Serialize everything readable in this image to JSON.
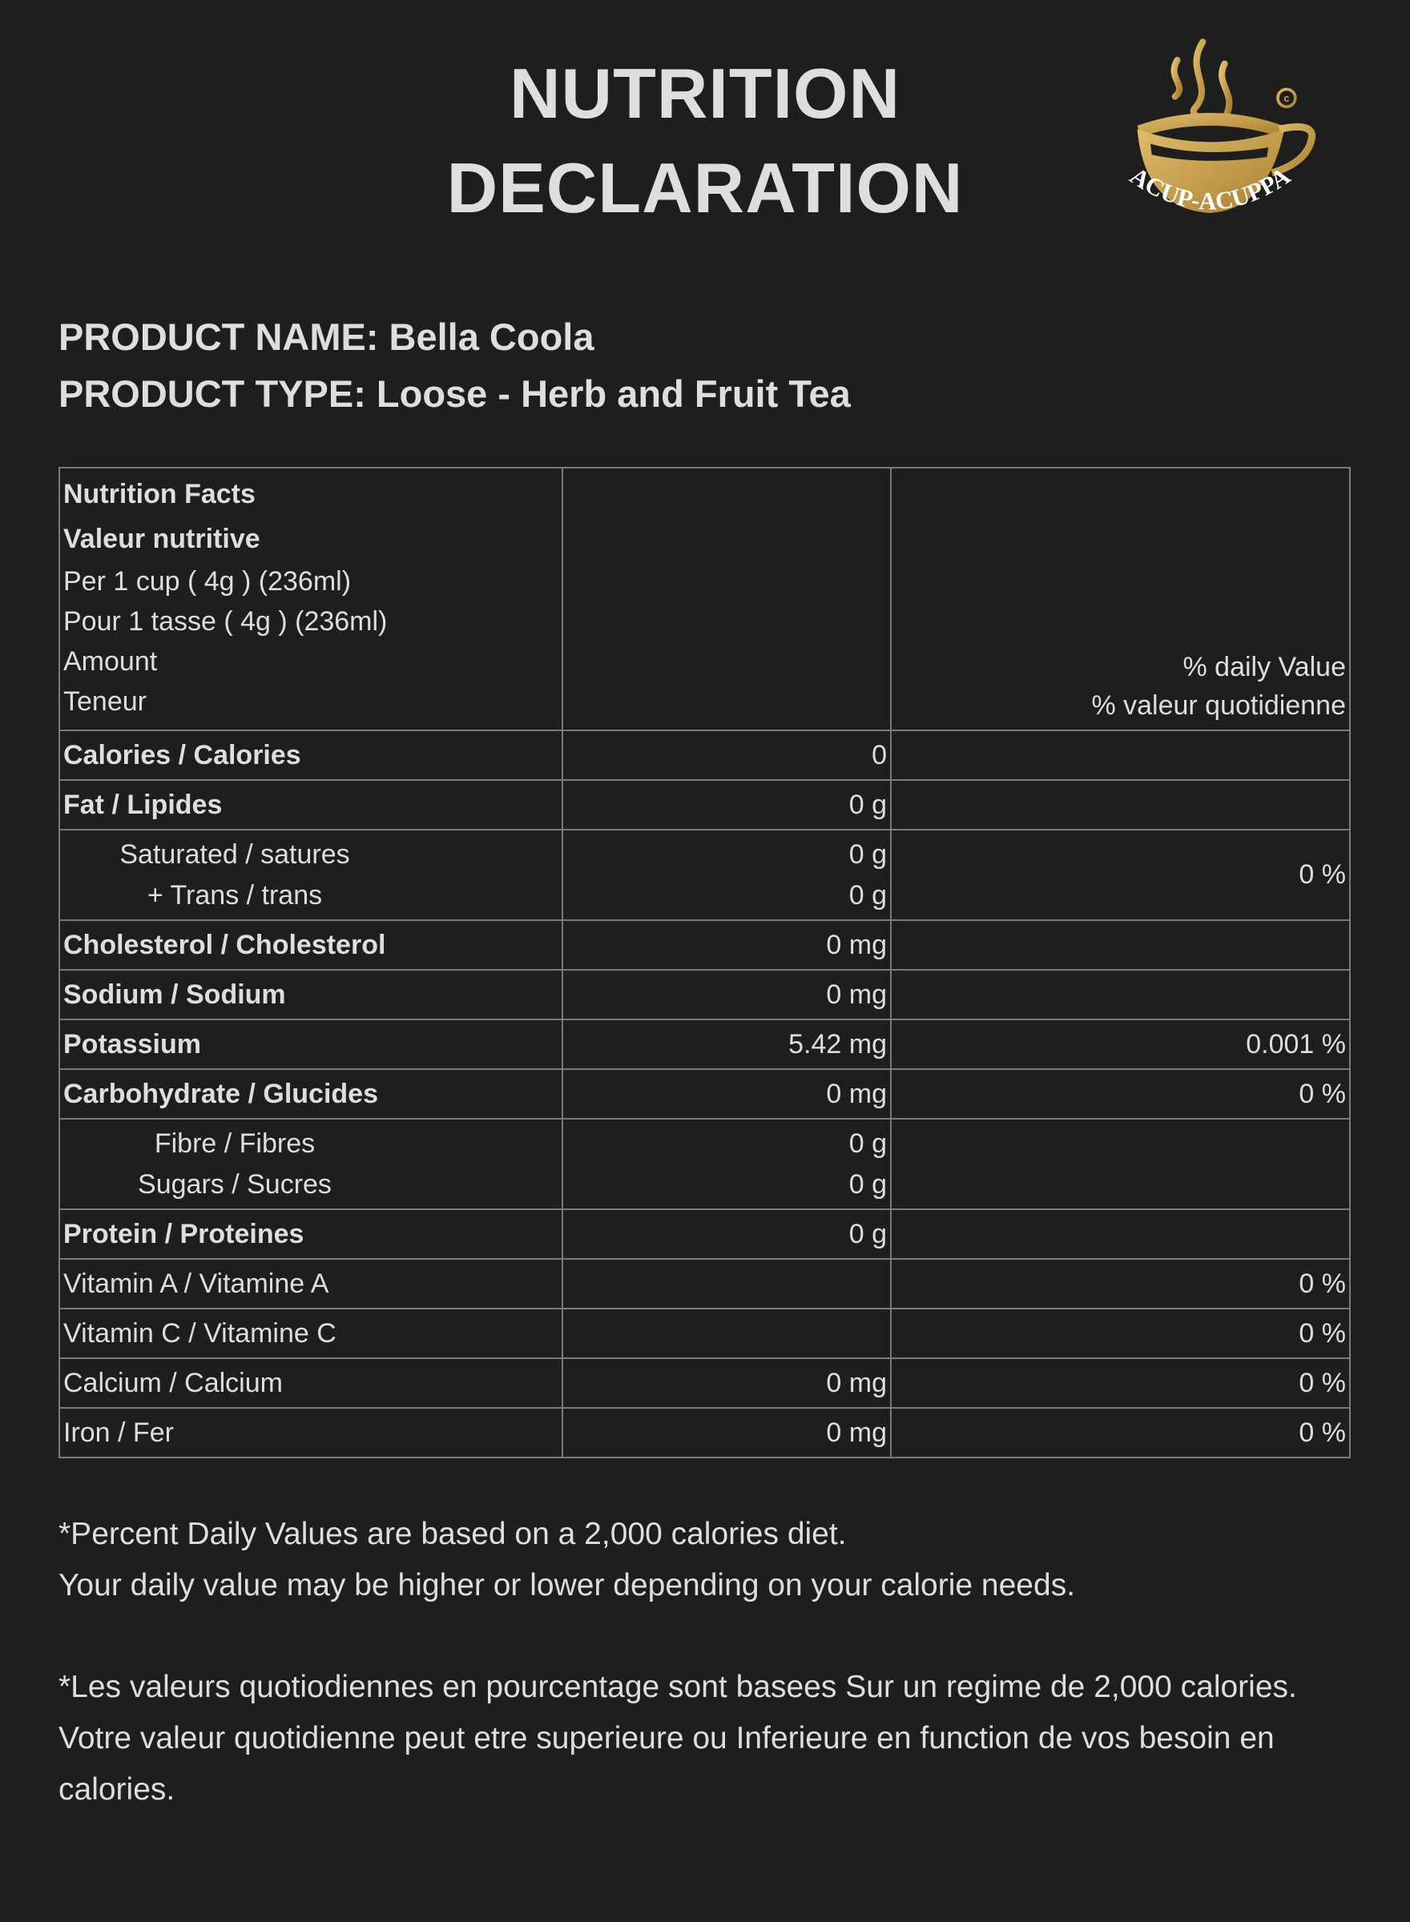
{
  "title": {
    "line1": "NUTRITION",
    "line2": "DECLARATION"
  },
  "logo": {
    "text": "ACUP-ACUPPA",
    "mark": "©",
    "color": "#c9a24c"
  },
  "product": {
    "name": "PRODUCT NAME: Bella Coola",
    "type": "PRODUCT TYPE: Loose - Herb and Fruit Tea"
  },
  "table": {
    "header": {
      "en": "Nutrition Facts",
      "fr": "Valeur nutritive",
      "per_en": "Per 1 cup ( 4g ) (236ml)",
      "per_fr": "Pour 1 tasse ( 4g ) (236ml)",
      "amount_en": "Amount",
      "amount_fr": "Teneur",
      "dv_en": "% daily Value",
      "dv_fr": "% valeur quotidienne"
    },
    "rows": [
      {
        "label": "Calories / Calories",
        "amount": "0",
        "dv": ""
      },
      {
        "label": "Fat / Lipides",
        "amount": "0 g",
        "dv": ""
      },
      {
        "sub1": "Saturated / satures",
        "amt1": "0 g",
        "sub2": "+ Trans / trans",
        "amt2": "0 g",
        "dv": "0 %"
      },
      {
        "label": "Cholesterol / Cholesterol",
        "amount": "0 mg",
        "dv": ""
      },
      {
        "label": "Sodium / Sodium",
        "amount": "0 mg",
        "dv": ""
      },
      {
        "label": "Potassium",
        "amount": "5.42 mg",
        "dv": "0.001 %"
      },
      {
        "label": "Carbohydrate / Glucides",
        "amount": "0 mg",
        "dv": "0 %"
      },
      {
        "sub1": "Fibre / Fibres",
        "amt1": "0 g",
        "sub2": "Sugars / Sucres",
        "amt2": "0 g",
        "dv": ""
      },
      {
        "label": "Protein / Proteines",
        "amount": "0 g",
        "dv": ""
      },
      {
        "label": "Vitamin A / Vitamine A",
        "amount": "",
        "dv": "0 %"
      },
      {
        "label": "Vitamin C / Vitamine C",
        "amount": "",
        "dv": "0 %"
      },
      {
        "label": "Calcium / Calcium",
        "amount": "0 mg",
        "dv": "0 %"
      },
      {
        "label": "Iron / Fer",
        "amount": "0 mg",
        "dv": "0 %"
      }
    ]
  },
  "footer": {
    "en1": "*Percent Daily Values are based on a 2,000 calories diet.",
    "en2": "Your daily value may be higher or lower depending on your calorie needs.",
    "fr1": "*Les valeurs quotiodiennes en pourcentage sont basees Sur un regime de 2,000 calories.",
    "fr2": "Votre valeur quotidienne peut etre superieure ou Inferieure en function de vos besoin en calories."
  }
}
